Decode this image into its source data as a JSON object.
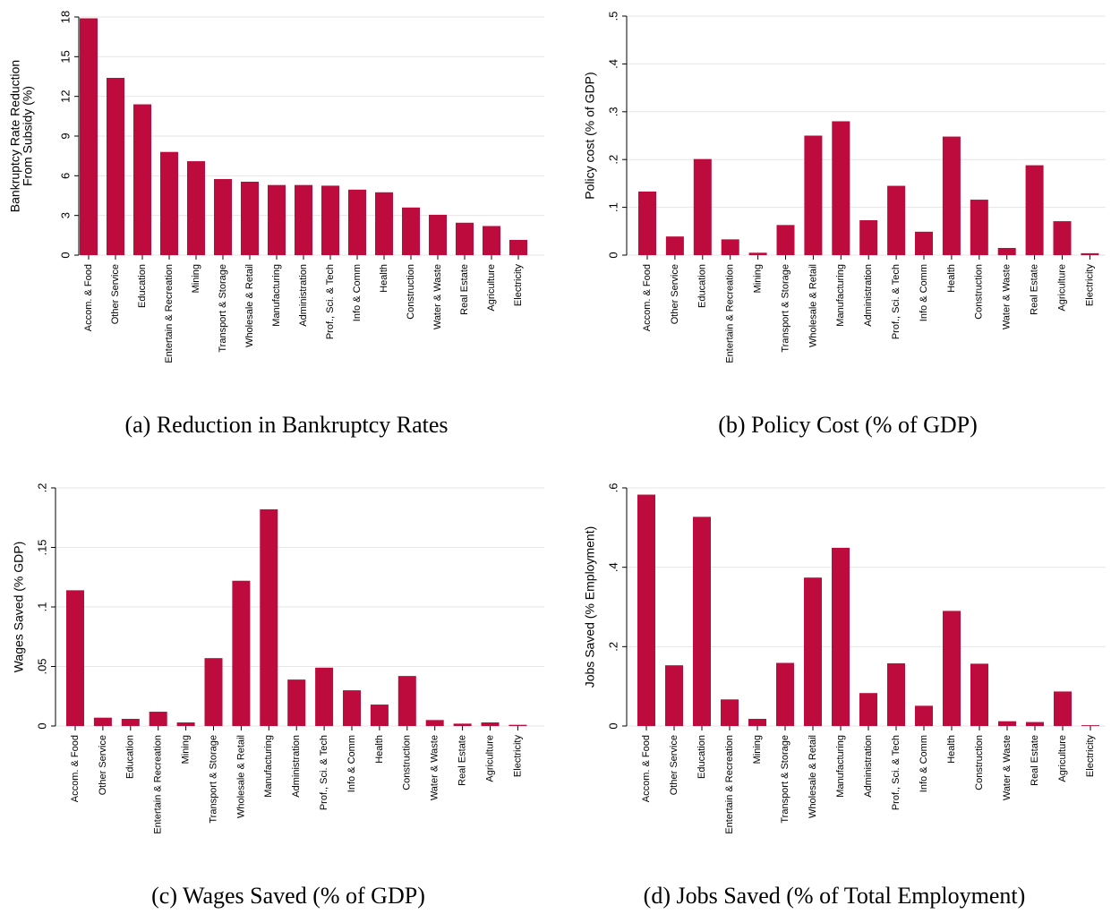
{
  "chart_data": [
    {
      "type": "bar",
      "caption": "(a) Reduction in Bankruptcy Rates",
      "ylabel": [
        "Bankruptcy Rate Reduction",
        "From Subsidy (%)"
      ],
      "categories": [
        "Accom. & Food",
        "Other Service",
        "Education",
        "Entertain & Recreation",
        "Mining",
        "Transport & Storage",
        "Wholesale & Retail",
        "Manufacturing",
        "Administration",
        "Prof., Sci. & Tech",
        "Info & Comm",
        "Health",
        "Construction",
        "Water & Waste",
        "Real Estate",
        "Agriculture",
        "Electricity"
      ],
      "values": [
        17.9,
        13.4,
        11.4,
        7.8,
        7.1,
        5.75,
        5.55,
        5.3,
        5.3,
        5.25,
        4.95,
        4.75,
        3.6,
        3.05,
        2.45,
        2.2,
        1.15
      ],
      "color": "#bd0b3d",
      "ylim": [
        0,
        18
      ],
      "yticks": [
        0,
        3,
        6,
        9,
        12,
        15,
        18
      ],
      "grid": true
    },
    {
      "type": "bar",
      "caption": "(b) Policy Cost (% of GDP)",
      "ylabel": "Policy cost (% of GDP)",
      "categories": [
        "Accom. & Food",
        "Other Service",
        "Education",
        "Entertain & Recreation",
        "Mining",
        "Transport & Storage",
        "Wholesale & Retail",
        "Manufacturing",
        "Administration",
        "Prof., Sci. & Tech",
        "Info & Comm",
        "Health",
        "Construction",
        "Water & Waste",
        "Real Estate",
        "Agriculture",
        "Electricity"
      ],
      "values": [
        0.133,
        0.039,
        0.201,
        0.033,
        0.005,
        0.063,
        0.25,
        0.28,
        0.073,
        0.145,
        0.049,
        0.248,
        0.116,
        0.015,
        0.188,
        0.071,
        0.004
      ],
      "color": "#bd0b3d",
      "ylim": [
        0,
        0.5
      ],
      "yticks": [
        0,
        {
          "value": 0.1,
          "label": ".1"
        },
        {
          "value": 0.2,
          "label": ".2"
        },
        {
          "value": 0.3,
          "label": ".3"
        },
        {
          "value": 0.4,
          "label": ".4"
        },
        {
          "value": 0.5,
          "label": ".5"
        }
      ],
      "grid": true
    },
    {
      "type": "bar",
      "caption": "(c) Wages Saved (% of GDP)",
      "ylabel": "Wages Saved (% GDP)",
      "categories": [
        "Accom. & Food",
        "Other Service",
        "Education",
        "Entertain & Recreation",
        "Mining",
        "Transport & Storage",
        "Wholesale & Retail",
        "Manufacturing",
        "Administration",
        "Prof., Sci. & Tech",
        "Info & Comm",
        "Health",
        "Construction",
        "Water & Waste",
        "Real Estate",
        "Agriculture",
        "Electricity"
      ],
      "values": [
        0.114,
        0.007,
        0.006,
        0.012,
        0.003,
        0.057,
        0.122,
        0.182,
        0.039,
        0.049,
        0.03,
        0.018,
        0.042,
        0.005,
        0.002,
        0.003,
        0.001
      ],
      "color": "#bd0b3d",
      "ylim": [
        0,
        0.2
      ],
      "yticks": [
        0,
        {
          "value": 0.05,
          "label": ".05"
        },
        {
          "value": 0.1,
          "label": ".1"
        },
        {
          "value": 0.15,
          "label": ".15"
        },
        {
          "value": 0.2,
          "label": ".2"
        }
      ],
      "grid": true
    },
    {
      "type": "bar",
      "caption": "(d) Jobs Saved (% of Total Employment)",
      "ylabel": "Jobs Saved (% Employment)",
      "categories": [
        "Accom. & Food",
        "Other Service",
        "Education",
        "Entertain & Recreation",
        "Mining",
        "Transport & Storage",
        "Wholesale & Retail",
        "Manufacturing",
        "Administration",
        "Prof., Sci. & Tech",
        "Info & Comm",
        "Health",
        "Construction",
        "Water & Waste",
        "Real Estate",
        "Agriculture",
        "Electricity"
      ],
      "values": [
        0.583,
        0.153,
        0.527,
        0.067,
        0.018,
        0.159,
        0.374,
        0.449,
        0.083,
        0.158,
        0.051,
        0.29,
        0.157,
        0.012,
        0.01,
        0.087,
        0.002
      ],
      "color": "#bd0b3d",
      "ylim": [
        0,
        0.6
      ],
      "yticks": [
        0,
        {
          "value": 0.2,
          "label": ".2"
        },
        {
          "value": 0.4,
          "label": ".4"
        },
        {
          "value": 0.6,
          "label": ".6"
        }
      ],
      "grid": true
    }
  ]
}
